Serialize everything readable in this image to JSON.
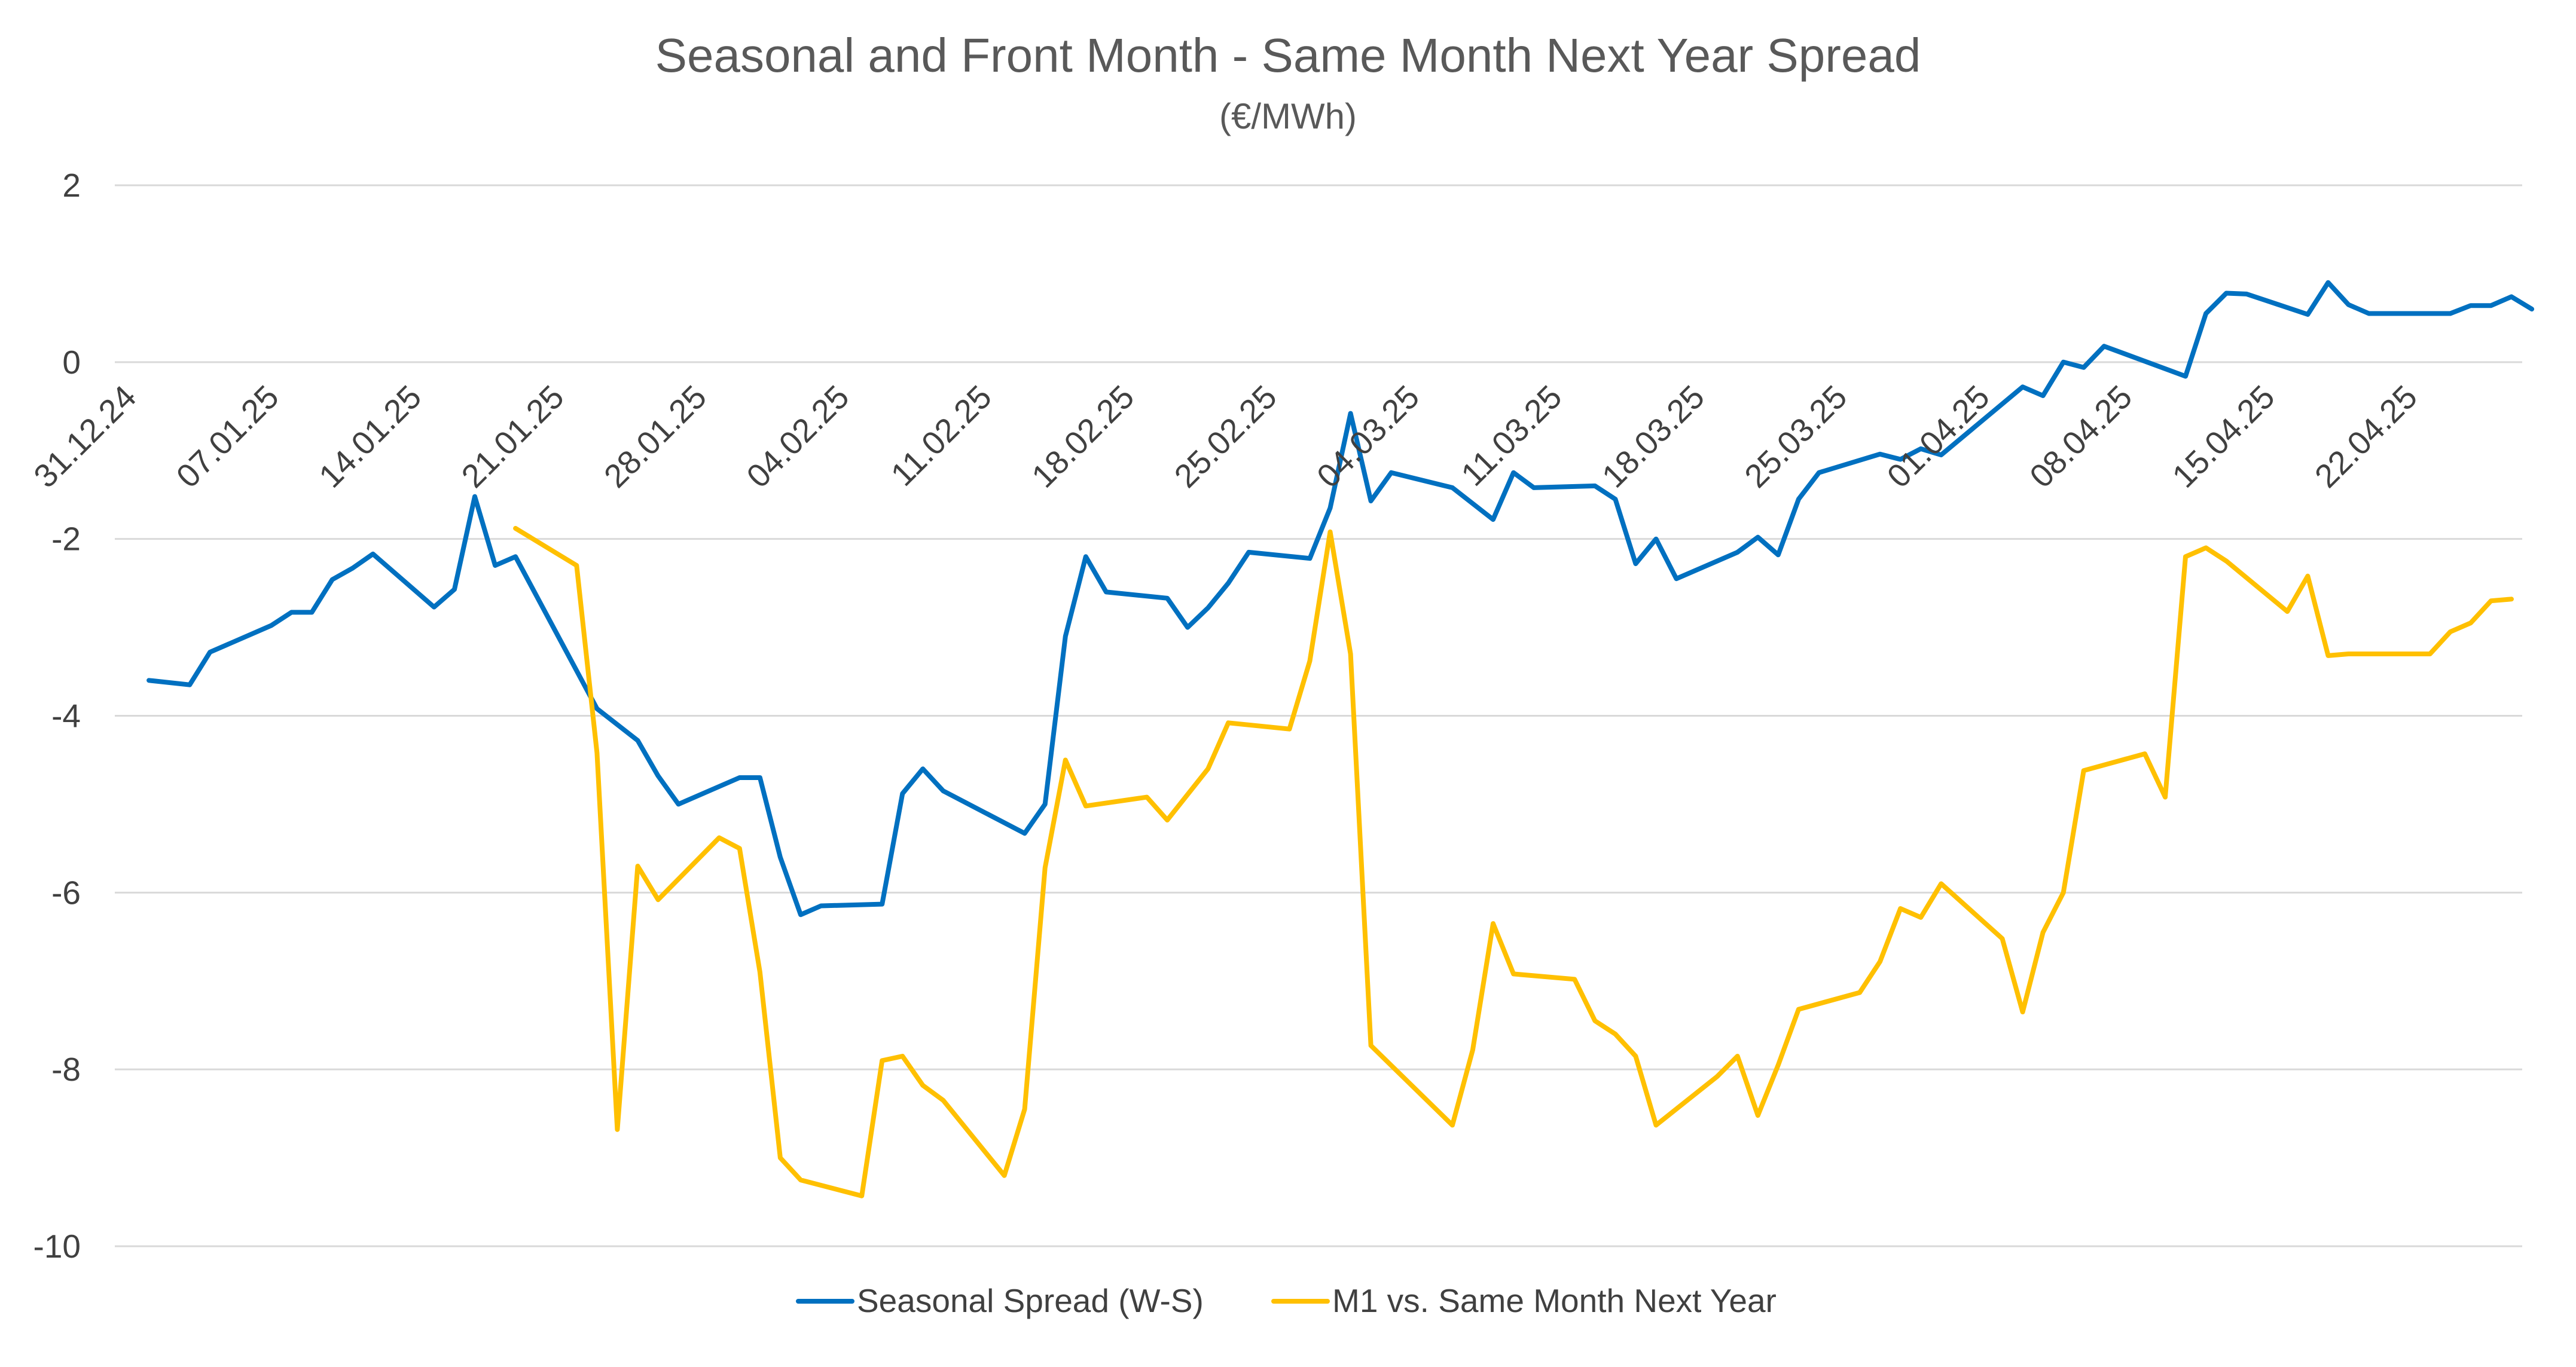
{
  "chart_data": {
    "type": "line",
    "title": "Seasonal and Front Month - Same Month Next Year Spread",
    "subtitle": "(€/MWh)",
    "xlabel": "",
    "ylabel": "",
    "x_tick_labels": [
      "31.12.24",
      "07.01.25",
      "14.01.25",
      "21.01.25",
      "28.01.25",
      "04.02.25",
      "11.02.25",
      "18.02.25",
      "25.02.25",
      "04.03.25",
      "11.03.25",
      "18.03.25",
      "25.03.25",
      "01.04.25",
      "08.04.25",
      "15.04.25",
      "22.04.25"
    ],
    "x_range": [
      "31.12.24",
      "27.04.25"
    ],
    "ylim": [
      -10,
      2
    ],
    "y_ticks": [
      2,
      0,
      -2,
      -4,
      -6,
      -8,
      -10
    ],
    "grid": "horizontal",
    "legend_position": "bottom",
    "series": [
      {
        "name": "Seasonal Spread (W-S)",
        "color": "#0070c0",
        "points": [
          [
            "01.01.25",
            -3.6
          ],
          [
            "03.01.25",
            -3.65
          ],
          [
            "04.01.25",
            -3.28
          ],
          [
            "07.01.25",
            -2.98
          ],
          [
            "08.01.25",
            -2.83
          ],
          [
            "09.01.25",
            -2.83
          ],
          [
            "10.01.25",
            -2.46
          ],
          [
            "11.01.25",
            -2.33
          ],
          [
            "12.01.25",
            -2.17
          ],
          [
            "15.01.25",
            -2.77
          ],
          [
            "16.01.25",
            -2.57
          ],
          [
            "17.01.25",
            -1.52
          ],
          [
            "18.01.25",
            -2.3
          ],
          [
            "19.01.25",
            -2.2
          ],
          [
            "23.01.25",
            -3.92
          ],
          [
            "25.01.25",
            -4.28
          ],
          [
            "26.01.25",
            -4.68
          ],
          [
            "27.01.25",
            -5.0
          ],
          [
            "30.01.25",
            -4.7
          ],
          [
            "31.01.25",
            -4.7
          ],
          [
            "01.02.25",
            -5.6
          ],
          [
            "02.02.25",
            -6.25
          ],
          [
            "03.02.25",
            -6.15
          ],
          [
            "06.02.25",
            -6.13
          ],
          [
            "07.02.25",
            -4.88
          ],
          [
            "08.02.25",
            -4.6
          ],
          [
            "09.02.25",
            -4.85
          ],
          [
            "13.02.25",
            -5.33
          ],
          [
            "14.02.25",
            -5.0
          ],
          [
            "15.02.25",
            -3.1
          ],
          [
            "16.02.25",
            -2.2
          ],
          [
            "17.02.25",
            -2.6
          ],
          [
            "20.02.25",
            -2.67
          ],
          [
            "21.02.25",
            -3.0
          ],
          [
            "22.02.25",
            -2.78
          ],
          [
            "23.02.25",
            -2.5
          ],
          [
            "24.02.25",
            -2.15
          ],
          [
            "27.02.25",
            -2.22
          ],
          [
            "28.02.25",
            -1.65
          ],
          [
            "01.03.25",
            -0.58
          ],
          [
            "02.03.25",
            -1.57
          ],
          [
            "03.03.25",
            -1.25
          ],
          [
            "06.03.25",
            -1.42
          ],
          [
            "08.03.25",
            -1.78
          ],
          [
            "09.03.25",
            -1.25
          ],
          [
            "10.03.25",
            -1.42
          ],
          [
            "13.03.25",
            -1.4
          ],
          [
            "14.03.25",
            -1.55
          ],
          [
            "15.03.25",
            -2.28
          ],
          [
            "16.03.25",
            -2.0
          ],
          [
            "17.03.25",
            -2.45
          ],
          [
            "20.03.25",
            -2.15
          ],
          [
            "21.03.25",
            -1.98
          ],
          [
            "22.03.25",
            -2.18
          ],
          [
            "23.03.25",
            -1.55
          ],
          [
            "24.03.25",
            -1.25
          ],
          [
            "27.03.25",
            -1.04
          ],
          [
            "28.03.25",
            -1.1
          ],
          [
            "29.03.25",
            -0.98
          ],
          [
            "30.03.25",
            -1.05
          ],
          [
            "03.04.25",
            -0.28
          ],
          [
            "04.04.25",
            -0.38
          ],
          [
            "05.04.25",
            0.0
          ],
          [
            "06.04.25",
            -0.06
          ],
          [
            "07.04.25",
            0.18
          ],
          [
            "11.04.25",
            -0.16
          ],
          [
            "12.04.25",
            0.55
          ],
          [
            "13.04.25",
            0.78
          ],
          [
            "14.04.25",
            0.77
          ],
          [
            "17.04.25",
            0.54
          ],
          [
            "18.04.25",
            0.9
          ],
          [
            "19.04.25",
            0.65
          ],
          [
            "20.04.25",
            0.55
          ],
          [
            "24.04.25",
            0.55
          ],
          [
            "25.04.25",
            0.64
          ],
          [
            "26.04.25",
            0.64
          ],
          [
            "27.04.25",
            0.74
          ],
          [
            "28.04.25",
            0.6
          ]
        ]
      },
      {
        "name": "M1 vs. Same Month Next Year",
        "color": "#ffc000",
        "points": [
          [
            "19.01.25",
            -1.88
          ],
          [
            "22.01.25",
            -2.3
          ],
          [
            "23.01.25",
            -4.42
          ],
          [
            "24.01.25",
            -8.68
          ],
          [
            "25.01.25",
            -5.7
          ],
          [
            "26.01.25",
            -6.08
          ],
          [
            "29.01.25",
            -5.38
          ],
          [
            "30.01.25",
            -5.5
          ],
          [
            "31.01.25",
            -6.9
          ],
          [
            "01.02.25",
            -9.0
          ],
          [
            "02.02.25",
            -9.25
          ],
          [
            "05.02.25",
            -9.43
          ],
          [
            "06.02.25",
            -7.9
          ],
          [
            "07.02.25",
            -7.85
          ],
          [
            "08.02.25",
            -8.18
          ],
          [
            "09.02.25",
            -8.35
          ],
          [
            "12.02.25",
            -9.2
          ],
          [
            "13.02.25",
            -8.45
          ],
          [
            "14.02.25",
            -5.72
          ],
          [
            "15.02.25",
            -4.5
          ],
          [
            "16.02.25",
            -5.02
          ],
          [
            "19.02.25",
            -4.92
          ],
          [
            "20.02.25",
            -5.18
          ],
          [
            "22.02.25",
            -4.6
          ],
          [
            "23.02.25",
            -4.08
          ],
          [
            "26.02.25",
            -4.15
          ],
          [
            "27.02.25",
            -3.38
          ],
          [
            "28.02.25",
            -1.92
          ],
          [
            "01.03.25",
            -3.3
          ],
          [
            "02.03.25",
            -7.73
          ],
          [
            "06.03.25",
            -8.63
          ],
          [
            "07.03.25",
            -7.78
          ],
          [
            "08.03.25",
            -6.35
          ],
          [
            "09.03.25",
            -6.92
          ],
          [
            "12.03.25",
            -6.98
          ],
          [
            "13.03.25",
            -7.45
          ],
          [
            "14.03.25",
            -7.6
          ],
          [
            "15.03.25",
            -7.85
          ],
          [
            "16.03.25",
            -8.63
          ],
          [
            "19.03.25",
            -8.08
          ],
          [
            "20.03.25",
            -7.85
          ],
          [
            "21.03.25",
            -8.52
          ],
          [
            "22.03.25",
            -7.95
          ],
          [
            "23.03.25",
            -7.32
          ],
          [
            "26.03.25",
            -7.13
          ],
          [
            "27.03.25",
            -6.78
          ],
          [
            "28.03.25",
            -6.18
          ],
          [
            "29.03.25",
            -6.28
          ],
          [
            "30.03.25",
            -5.9
          ],
          [
            "02.04.25",
            -6.52
          ],
          [
            "03.04.25",
            -7.35
          ],
          [
            "04.04.25",
            -6.45
          ],
          [
            "05.04.25",
            -6.0
          ],
          [
            "06.04.25",
            -4.62
          ],
          [
            "09.04.25",
            -4.43
          ],
          [
            "10.04.25",
            -4.92
          ],
          [
            "11.04.25",
            -2.2
          ],
          [
            "12.04.25",
            -2.1
          ],
          [
            "13.04.25",
            -2.25
          ],
          [
            "16.04.25",
            -2.82
          ],
          [
            "17.04.25",
            -2.42
          ],
          [
            "18.04.25",
            -3.32
          ],
          [
            "19.04.25",
            -3.3
          ],
          [
            "23.04.25",
            -3.3
          ],
          [
            "24.04.25",
            -3.05
          ],
          [
            "25.04.25",
            -2.95
          ],
          [
            "26.04.25",
            -2.7
          ],
          [
            "27.04.25",
            -2.68
          ]
        ]
      }
    ]
  }
}
